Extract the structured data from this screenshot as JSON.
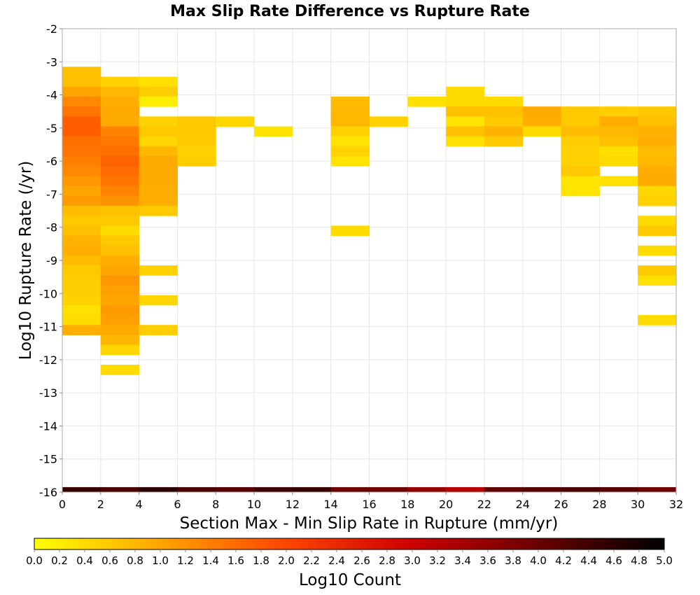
{
  "chart_data": {
    "type": "heatmap",
    "title": "Max Slip Rate Difference vs Rupture Rate",
    "xlabel": "Section Max - Min Slip Rate in Rupture (mm/yr)",
    "ylabel": "Log10 Rupture Rate (/yr)",
    "xlim": [
      0,
      32
    ],
    "ylim": [
      -16,
      -2
    ],
    "x_ticks": [
      "0",
      "2",
      "4",
      "6",
      "8",
      "10",
      "12",
      "14",
      "16",
      "18",
      "20",
      "22",
      "24",
      "26",
      "28",
      "30",
      "32"
    ],
    "y_ticks": [
      "-16",
      "-15",
      "-14",
      "-13",
      "-12",
      "-11",
      "-10",
      "-9",
      "-8",
      "-7",
      "-6",
      "-5",
      "-4",
      "-3",
      "-2"
    ],
    "x_bin_width": 2,
    "y_bin_height": 0.3,
    "grid": true,
    "colorbar": {
      "label": "Log10 Count",
      "min": 0.0,
      "max": 5.0,
      "ticks": [
        "0.0",
        "0.2",
        "0.4",
        "0.6",
        "0.8",
        "1.0",
        "1.2",
        "1.4",
        "1.6",
        "1.8",
        "2.0",
        "2.2",
        "2.4",
        "2.6",
        "2.8",
        "3.0",
        "3.2",
        "3.4",
        "3.6",
        "3.8",
        "4.0",
        "4.2",
        "4.4",
        "4.6",
        "4.8",
        "5.0"
      ],
      "colors": [
        "#ffff00",
        "#ffa500",
        "#ff4500",
        "#cc0000",
        "#6b0000",
        "#000000"
      ]
    },
    "cells": [
      {
        "x": 0,
        "y": -3.3,
        "v": 0.7
      },
      {
        "x": 0,
        "y": -3.6,
        "v": 0.7
      },
      {
        "x": 0,
        "y": -3.9,
        "v": 1.0
      },
      {
        "x": 0,
        "y": -4.2,
        "v": 1.3
      },
      {
        "x": 0,
        "y": -4.5,
        "v": 1.5
      },
      {
        "x": 0,
        "y": -4.8,
        "v": 1.75
      },
      {
        "x": 0,
        "y": -5.1,
        "v": 1.75
      },
      {
        "x": 0,
        "y": -5.4,
        "v": 1.55
      },
      {
        "x": 0,
        "y": -5.7,
        "v": 1.5
      },
      {
        "x": 0,
        "y": -6.0,
        "v": 1.4
      },
      {
        "x": 0,
        "y": -6.3,
        "v": 1.3
      },
      {
        "x": 0,
        "y": -6.6,
        "v": 1.15
      },
      {
        "x": 0,
        "y": -6.9,
        "v": 1.0
      },
      {
        "x": 0,
        "y": -7.2,
        "v": 1.1
      },
      {
        "x": 0,
        "y": -7.5,
        "v": 0.75
      },
      {
        "x": 0,
        "y": -7.8,
        "v": 0.6
      },
      {
        "x": 0,
        "y": -8.1,
        "v": 0.7
      },
      {
        "x": 0,
        "y": -8.4,
        "v": 0.85
      },
      {
        "x": 0,
        "y": -8.7,
        "v": 0.9
      },
      {
        "x": 0,
        "y": -9.0,
        "v": 0.75
      },
      {
        "x": 0,
        "y": -9.3,
        "v": 0.6
      },
      {
        "x": 0,
        "y": -9.6,
        "v": 0.55
      },
      {
        "x": 0,
        "y": -9.9,
        "v": 0.55
      },
      {
        "x": 0,
        "y": -10.2,
        "v": 0.5
      },
      {
        "x": 0,
        "y": -10.5,
        "v": 0.35
      },
      {
        "x": 0,
        "y": -10.8,
        "v": 0.4
      },
      {
        "x": 0,
        "y": -11.1,
        "v": 0.9
      },
      {
        "x": 2,
        "y": -3.6,
        "v": 0.5
      },
      {
        "x": 2,
        "y": -3.9,
        "v": 0.8
      },
      {
        "x": 2,
        "y": -4.2,
        "v": 0.9
      },
      {
        "x": 2,
        "y": -4.5,
        "v": 0.95
      },
      {
        "x": 2,
        "y": -4.8,
        "v": 0.95
      },
      {
        "x": 2,
        "y": -5.1,
        "v": 1.35
      },
      {
        "x": 2,
        "y": -5.4,
        "v": 1.45
      },
      {
        "x": 2,
        "y": -5.7,
        "v": 1.55
      },
      {
        "x": 2,
        "y": -6.0,
        "v": 1.7
      },
      {
        "x": 2,
        "y": -6.3,
        "v": 1.6
      },
      {
        "x": 2,
        "y": -6.6,
        "v": 1.5
      },
      {
        "x": 2,
        "y": -6.9,
        "v": 1.35
      },
      {
        "x": 2,
        "y": -7.2,
        "v": 1.2
      },
      {
        "x": 2,
        "y": -7.5,
        "v": 0.7
      },
      {
        "x": 2,
        "y": -7.8,
        "v": 0.6
      },
      {
        "x": 2,
        "y": -8.1,
        "v": 0.4
      },
      {
        "x": 2,
        "y": -8.4,
        "v": 0.6
      },
      {
        "x": 2,
        "y": -8.7,
        "v": 0.7
      },
      {
        "x": 2,
        "y": -9.0,
        "v": 0.9
      },
      {
        "x": 2,
        "y": -9.3,
        "v": 1.0
      },
      {
        "x": 2,
        "y": -9.6,
        "v": 1.15
      },
      {
        "x": 2,
        "y": -9.9,
        "v": 1.05
      },
      {
        "x": 2,
        "y": -10.2,
        "v": 1.0
      },
      {
        "x": 2,
        "y": -10.5,
        "v": 1.1
      },
      {
        "x": 2,
        "y": -10.8,
        "v": 1.05
      },
      {
        "x": 2,
        "y": -11.1,
        "v": 0.95
      },
      {
        "x": 2,
        "y": -11.4,
        "v": 0.8
      },
      {
        "x": 2,
        "y": -11.7,
        "v": 0.45
      },
      {
        "x": 2,
        "y": -12.3,
        "v": 0.4
      },
      {
        "x": 4,
        "y": -3.6,
        "v": 0.35
      },
      {
        "x": 4,
        "y": -3.9,
        "v": 0.55
      },
      {
        "x": 4,
        "y": -4.2,
        "v": 0.2
      },
      {
        "x": 4,
        "y": -4.8,
        "v": 0.5
      },
      {
        "x": 4,
        "y": -5.1,
        "v": 0.6
      },
      {
        "x": 4,
        "y": -5.4,
        "v": 0.45
      },
      {
        "x": 4,
        "y": -5.7,
        "v": 0.8
      },
      {
        "x": 4,
        "y": -6.0,
        "v": 0.95
      },
      {
        "x": 4,
        "y": -6.3,
        "v": 0.95
      },
      {
        "x": 4,
        "y": -6.6,
        "v": 0.95
      },
      {
        "x": 4,
        "y": -6.9,
        "v": 0.9
      },
      {
        "x": 4,
        "y": -7.2,
        "v": 0.9
      },
      {
        "x": 4,
        "y": -7.5,
        "v": 0.6
      },
      {
        "x": 4,
        "y": -9.3,
        "v": 0.5
      },
      {
        "x": 4,
        "y": -10.2,
        "v": 0.45
      },
      {
        "x": 4,
        "y": -11.1,
        "v": 0.55
      },
      {
        "x": 6,
        "y": -4.8,
        "v": 0.6
      },
      {
        "x": 6,
        "y": -5.1,
        "v": 0.6
      },
      {
        "x": 6,
        "y": -5.4,
        "v": 0.6
      },
      {
        "x": 6,
        "y": -5.7,
        "v": 0.5
      },
      {
        "x": 6,
        "y": -6.0,
        "v": 0.55
      },
      {
        "x": 8,
        "y": -4.8,
        "v": 0.45
      },
      {
        "x": 10,
        "y": -5.1,
        "v": 0.3
      },
      {
        "x": 14,
        "y": -4.2,
        "v": 0.75
      },
      {
        "x": 14,
        "y": -4.5,
        "v": 0.8
      },
      {
        "x": 14,
        "y": -4.8,
        "v": 0.8
      },
      {
        "x": 14,
        "y": -5.1,
        "v": 0.5
      },
      {
        "x": 14,
        "y": -5.4,
        "v": 0.3
      },
      {
        "x": 14,
        "y": -5.7,
        "v": 0.5
      },
      {
        "x": 14,
        "y": -6.0,
        "v": 0.3
      },
      {
        "x": 14,
        "y": -8.1,
        "v": 0.4
      },
      {
        "x": 16,
        "y": -4.8,
        "v": 0.5
      },
      {
        "x": 18,
        "y": -4.2,
        "v": 0.35
      },
      {
        "x": 20,
        "y": -3.9,
        "v": 0.4
      },
      {
        "x": 20,
        "y": -4.2,
        "v": 0.4
      },
      {
        "x": 20,
        "y": -4.5,
        "v": 0.7
      },
      {
        "x": 20,
        "y": -4.8,
        "v": 0.3
      },
      {
        "x": 20,
        "y": -5.1,
        "v": 0.7
      },
      {
        "x": 20,
        "y": -5.4,
        "v": 0.35
      },
      {
        "x": 22,
        "y": -4.2,
        "v": 0.4
      },
      {
        "x": 22,
        "y": -4.5,
        "v": 0.7
      },
      {
        "x": 22,
        "y": -4.8,
        "v": 0.6
      },
      {
        "x": 22,
        "y": -5.1,
        "v": 0.85
      },
      {
        "x": 22,
        "y": -5.4,
        "v": 0.6
      },
      {
        "x": 24,
        "y": -4.5,
        "v": 0.95
      },
      {
        "x": 24,
        "y": -4.8,
        "v": 0.9
      },
      {
        "x": 24,
        "y": -5.1,
        "v": 0.4
      },
      {
        "x": 26,
        "y": -4.5,
        "v": 0.6
      },
      {
        "x": 26,
        "y": -4.8,
        "v": 0.6
      },
      {
        "x": 26,
        "y": -5.1,
        "v": 0.75
      },
      {
        "x": 26,
        "y": -5.4,
        "v": 0.55
      },
      {
        "x": 26,
        "y": -5.7,
        "v": 0.5
      },
      {
        "x": 26,
        "y": -6.0,
        "v": 0.5
      },
      {
        "x": 26,
        "y": -6.3,
        "v": 0.6
      },
      {
        "x": 26,
        "y": -6.6,
        "v": 0.3
      },
      {
        "x": 26,
        "y": -6.9,
        "v": 0.3
      },
      {
        "x": 28,
        "y": -4.5,
        "v": 0.55
      },
      {
        "x": 28,
        "y": -4.8,
        "v": 0.9
      },
      {
        "x": 28,
        "y": -5.1,
        "v": 0.8
      },
      {
        "x": 28,
        "y": -5.4,
        "v": 0.7
      },
      {
        "x": 28,
        "y": -5.7,
        "v": 0.35
      },
      {
        "x": 28,
        "y": -6.0,
        "v": 0.4
      },
      {
        "x": 28,
        "y": -6.6,
        "v": 0.35
      },
      {
        "x": 30,
        "y": -4.5,
        "v": 0.6
      },
      {
        "x": 30,
        "y": -4.8,
        "v": 0.7
      },
      {
        "x": 30,
        "y": -5.1,
        "v": 0.85
      },
      {
        "x": 30,
        "y": -5.4,
        "v": 0.9
      },
      {
        "x": 30,
        "y": -5.7,
        "v": 0.75
      },
      {
        "x": 30,
        "y": -6.0,
        "v": 0.8
      },
      {
        "x": 30,
        "y": -6.3,
        "v": 0.9
      },
      {
        "x": 30,
        "y": -6.6,
        "v": 0.95
      },
      {
        "x": 30,
        "y": -6.9,
        "v": 0.45
      },
      {
        "x": 30,
        "y": -7.2,
        "v": 0.5
      },
      {
        "x": 30,
        "y": -7.8,
        "v": 0.4
      },
      {
        "x": 30,
        "y": -8.1,
        "v": 0.6
      },
      {
        "x": 30,
        "y": -8.7,
        "v": 0.4
      },
      {
        "x": 30,
        "y": -9.3,
        "v": 0.6
      },
      {
        "x": 30,
        "y": -9.6,
        "v": 0.35
      },
      {
        "x": 30,
        "y": -10.8,
        "v": 0.4
      }
    ],
    "bottom_row": {
      "y": -16.0,
      "values": [
        4.5,
        4.3,
        4.6,
        4.3,
        4.2,
        4.4,
        4.5,
        4.0,
        4.0,
        3.6,
        3.2,
        4.1,
        4.2,
        4.3,
        4.2,
        4.0
      ]
    }
  }
}
